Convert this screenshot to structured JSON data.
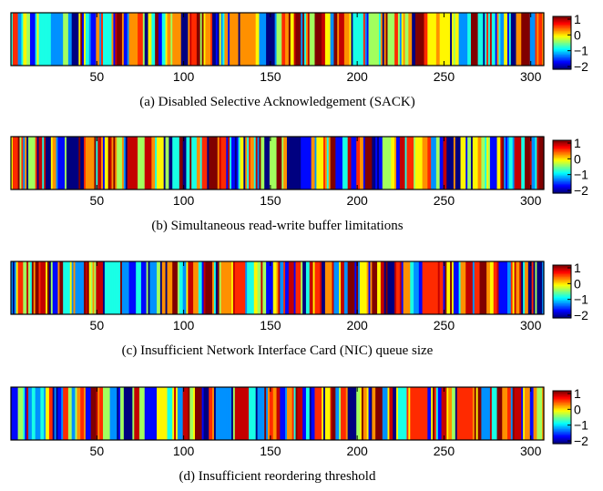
{
  "chart_data": [
    {
      "type": "heatmap",
      "caption": "(a) Disabled Selective Acknowledgement (SACK)",
      "x_ticks": [
        50,
        100,
        150,
        200,
        250,
        300
      ],
      "xlim": [
        1,
        307
      ],
      "colorbar": {
        "ticks": [
          "1",
          "0",
          "−1",
          "−2"
        ],
        "range": [
          -2,
          1
        ]
      },
      "seed": 11,
      "values": []
    },
    {
      "type": "heatmap",
      "caption": "(b) Simultaneous read-write buffer limitations",
      "x_ticks": [
        50,
        100,
        150,
        200,
        250,
        300
      ],
      "xlim": [
        1,
        307
      ],
      "colorbar": {
        "ticks": [
          "1",
          "0",
          "−1",
          "−2"
        ],
        "range": [
          -2,
          1
        ]
      },
      "seed": 23,
      "values": []
    },
    {
      "type": "heatmap",
      "caption": "(c) Insufficient Network Interface Card (NIC) queue size",
      "x_ticks": [
        50,
        100,
        150,
        200,
        250,
        300
      ],
      "xlim": [
        1,
        307
      ],
      "colorbar": {
        "ticks": [
          "1",
          "0",
          "−1",
          "−2"
        ],
        "range": [
          -2,
          1
        ]
      },
      "seed": 37,
      "values": []
    },
    {
      "type": "heatmap",
      "caption": "(d) Insufficient reordering threshold",
      "x_ticks": [
        50,
        100,
        150,
        200,
        250,
        300
      ],
      "xlim": [
        1,
        307
      ],
      "colorbar": {
        "ticks": [
          "1",
          "0",
          "−1",
          "−2"
        ],
        "range": [
          -2,
          1
        ]
      },
      "seed": 53,
      "values": []
    }
  ]
}
